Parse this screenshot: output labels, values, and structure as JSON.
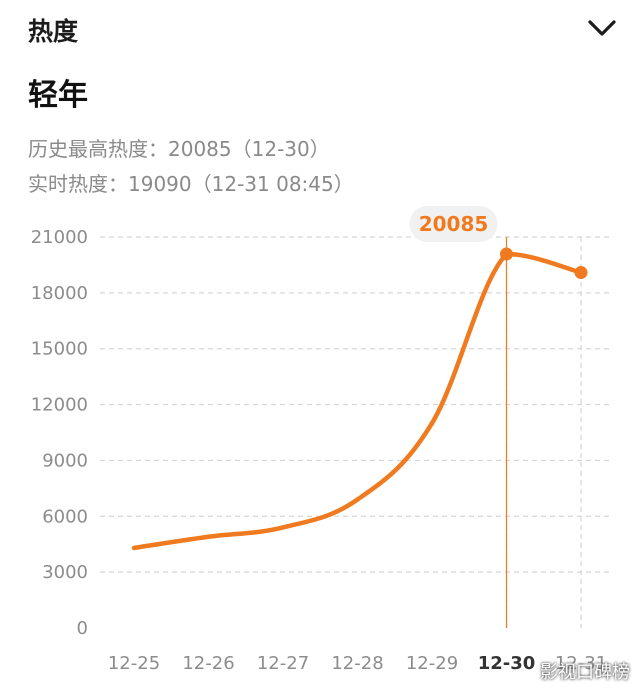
{
  "header": {
    "section_title": "热度",
    "collapse_icon": "chevron-down-icon"
  },
  "show_title": "轻年",
  "stats": {
    "peak_line": "历史最高热度：20085（12-30）",
    "live_line": "实时热度：19090（12-31 08:45）"
  },
  "tooltip_value": "20085",
  "watermark": "影视口碑榜",
  "colors": {
    "line": "#F07A1F",
    "grid": "#d6d6d6",
    "axis_text": "#8c8c8c",
    "tooltip_bg": "#f1f1f1"
  },
  "chart_data": {
    "type": "line",
    "x": [
      "12-25",
      "12-26",
      "12-27",
      "12-28",
      "12-29",
      "12-30",
      "12-31"
    ],
    "series": [
      {
        "values": [
          4300,
          4900,
          5400,
          6900,
          11000,
          20085,
          19090
        ]
      }
    ],
    "highlight": "12-30",
    "yticks": [
      0,
      3000,
      6000,
      9000,
      12000,
      15000,
      18000,
      21000
    ],
    "ylim": [
      0,
      21000
    ],
    "grid": true
  }
}
